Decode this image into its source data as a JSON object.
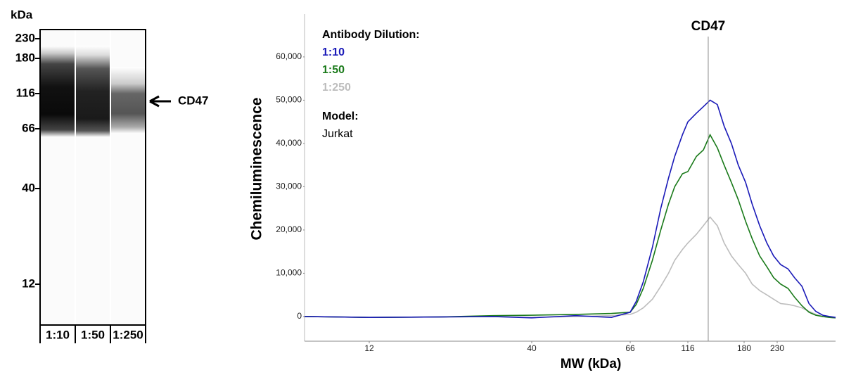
{
  "gel": {
    "unit": "kDa",
    "markers": [
      "230",
      "180",
      "116",
      "66",
      "40",
      "12"
    ],
    "lanes": [
      "1:10",
      "1:50",
      "1:250"
    ],
    "band": "CD47"
  },
  "chart_data": {
    "type": "line",
    "y_label": "Chemiluminescence",
    "x_label": "MW (kDa)",
    "legend_title": "Antibody Dilution:",
    "model_title": "Model:",
    "model": "Jurkat",
    "marker_line": {
      "label": "CD47",
      "x": 136
    },
    "x": [
      8,
      12,
      20,
      30,
      40,
      50,
      60,
      66,
      70,
      75,
      82,
      89,
      96,
      102,
      110,
      116,
      124,
      131,
      138,
      146,
      154,
      163,
      172,
      182,
      191,
      202,
      213,
      224,
      235,
      246,
      256,
      268,
      280,
      292,
      305,
      318,
      330
    ],
    "series": [
      {
        "name": "1:10",
        "color": "#1a1ab8",
        "values": [
          0,
          -200,
          -100,
          0,
          -300,
          200,
          -200,
          1000,
          3500,
          8000,
          16000,
          25000,
          32000,
          37000,
          42000,
          45000,
          47000,
          48500,
          50000,
          49000,
          44000,
          40000,
          35000,
          31000,
          26000,
          21000,
          17000,
          14000,
          12000,
          11000,
          9000,
          7000,
          3000,
          1200,
          300,
          0,
          -200
        ]
      },
      {
        "name": "1:50",
        "color": "#1a7a1a",
        "values": [
          0,
          -200,
          -100,
          200,
          300,
          500,
          700,
          1000,
          2800,
          6500,
          13000,
          20000,
          26000,
          30000,
          33000,
          33500,
          37000,
          38500,
          42000,
          39000,
          35000,
          31000,
          27000,
          22000,
          18000,
          14000,
          11500,
          9000,
          7500,
          6500,
          4500,
          2500,
          1000,
          300,
          0,
          -200,
          -300
        ]
      },
      {
        "name": "1:250",
        "color": "#bdbdbd",
        "values": [
          0,
          -200,
          -100,
          0,
          -200,
          0,
          200,
          500,
          1000,
          2000,
          4000,
          7000,
          10000,
          13000,
          15500,
          17000,
          19000,
          21000,
          23000,
          21000,
          17000,
          14000,
          12000,
          10000,
          7500,
          6000,
          5000,
          4000,
          3000,
          2800,
          2500,
          2000,
          1200,
          500,
          0,
          -200,
          -300
        ]
      }
    ],
    "xlim": [
      8,
      330
    ],
    "xticks": [
      12,
      40,
      66,
      116,
      180,
      230
    ],
    "ylim": [
      -5700,
      69900
    ],
    "yticks": [
      0,
      {
        "value": 10000,
        "label": "10,000"
      },
      {
        "value": 20000,
        "label": "20,000"
      },
      {
        "value": 30000,
        "label": "30,000"
      },
      {
        "value": 40000,
        "label": "40,000"
      },
      {
        "value": 50000,
        "label": "50,000"
      },
      {
        "value": 60000,
        "label": "60,000"
      }
    ]
  }
}
